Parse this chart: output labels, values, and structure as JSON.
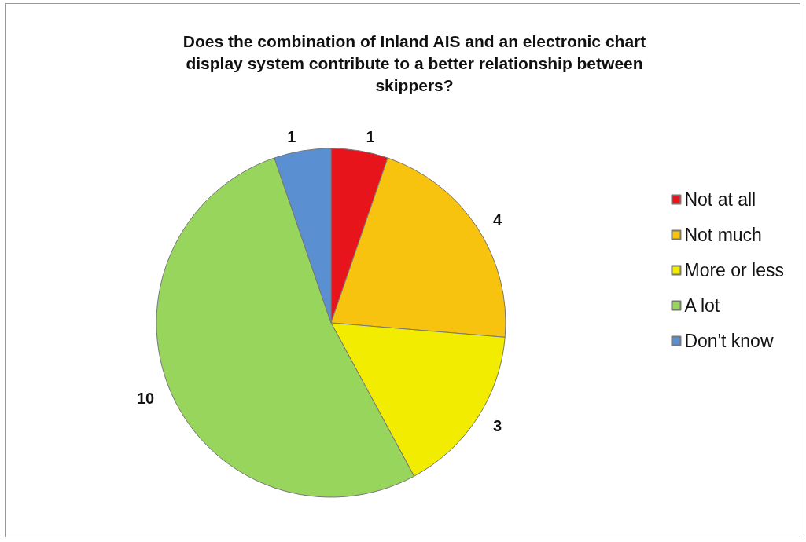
{
  "chart_data": {
    "type": "pie",
    "title": "Does the combination of Inland AIS and an electronic chart\ndisplay system contribute to a better relationship between\nskippers?",
    "categories": [
      "Not at all",
      "Not much",
      "More or less",
      "A lot",
      "Don't know"
    ],
    "values": [
      1,
      4,
      3,
      10,
      1
    ],
    "colors": [
      "#e8141c",
      "#f7c30f",
      "#f2ec00",
      "#98d55c",
      "#5a8fd2"
    ],
    "data_labels": true,
    "legend": "right"
  }
}
